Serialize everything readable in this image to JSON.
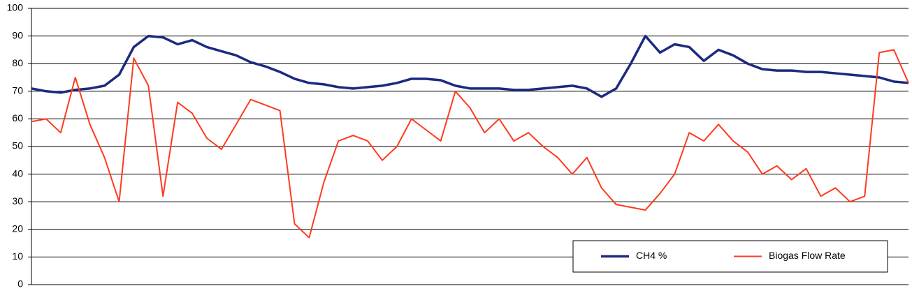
{
  "chart_data": {
    "type": "line",
    "ylim": [
      0,
      100
    ],
    "yticks": [
      0,
      10,
      20,
      30,
      40,
      50,
      60,
      70,
      80,
      90,
      100
    ],
    "grid": true,
    "legend": "lower right",
    "series": [
      {
        "name": "CH4 %",
        "color": "#1c2a80",
        "values": [
          71,
          70,
          69.5,
          70.5,
          71,
          72,
          76,
          86,
          90,
          89.5,
          87,
          88.5,
          86,
          84.5,
          83,
          80.5,
          79,
          77,
          74.5,
          73,
          72.5,
          71.5,
          71,
          71.5,
          72,
          73,
          74.5,
          74.5,
          74,
          72,
          71,
          71,
          71,
          70.5,
          70.5,
          71,
          71.5,
          72,
          71,
          68,
          71,
          80,
          90,
          84,
          87,
          86,
          81,
          85,
          83,
          80,
          78,
          77.5,
          77.5,
          77,
          77,
          76.5,
          76,
          75.5,
          75,
          73.5,
          73
        ]
      },
      {
        "name": "Biogas Flow Rate",
        "color": "#ff3b1f",
        "values": [
          59,
          60,
          55,
          75,
          58,
          46,
          30,
          82,
          72,
          32,
          66,
          62,
          53,
          49,
          58,
          67,
          65,
          63,
          22,
          17,
          37,
          52,
          54,
          52,
          45,
          50,
          60,
          56,
          52,
          70,
          64,
          55,
          60,
          52,
          55,
          50,
          46,
          40,
          46,
          35,
          29,
          28,
          27,
          33,
          40,
          55,
          52,
          58,
          52,
          48,
          40,
          43,
          38,
          42,
          32,
          35,
          30,
          32,
          84,
          85,
          73
        ]
      }
    ]
  }
}
